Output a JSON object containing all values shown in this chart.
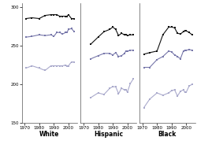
{
  "years_white": [
    1971,
    1975,
    1980,
    1984,
    1988,
    1990,
    1992,
    1994,
    1996,
    1998,
    1999,
    2000,
    2002,
    2004
  ],
  "white_grade12": [
    285,
    286,
    285,
    289,
    290,
    290,
    290,
    288,
    288,
    288,
    288,
    290,
    285,
    285
  ],
  "white_grade8": [
    261,
    262,
    264,
    263,
    264,
    262,
    267,
    267,
    265,
    267,
    267,
    271,
    272,
    268
  ],
  "white_grade4": [
    221,
    224,
    221,
    218,
    224,
    224,
    224,
    224,
    224,
    225,
    224,
    224,
    229,
    229
  ],
  "years_hispanic": [
    1975,
    1980,
    1984,
    1988,
    1990,
    1992,
    1994,
    1996,
    1998,
    1999,
    2000,
    2002,
    2004
  ],
  "hisp_grade12": [
    252,
    261,
    268,
    271,
    274,
    271,
    263,
    266,
    264,
    264,
    263,
    264,
    264
  ],
  "hisp_grade8": [
    233,
    237,
    240,
    240,
    238,
    241,
    236,
    237,
    240,
    243,
    243,
    244,
    244
  ],
  "hisp_grade4": [
    183,
    189,
    187,
    195,
    197,
    197,
    188,
    195,
    193,
    193,
    190,
    201,
    207
  ],
  "years_black": [
    1971,
    1975,
    1980,
    1984,
    1988,
    1990,
    1992,
    1994,
    1996,
    1998,
    1999,
    2000,
    2002,
    2004
  ],
  "black_grade12": [
    239,
    241,
    243,
    264,
    274,
    274,
    273,
    266,
    265,
    268,
    269,
    269,
    267,
    264
  ],
  "black_grade8": [
    222,
    222,
    232,
    236,
    243,
    242,
    238,
    236,
    233,
    243,
    244,
    244,
    245,
    244
  ],
  "black_grade4": [
    170,
    181,
    189,
    186,
    189,
    192,
    193,
    185,
    191,
    193,
    190,
    190,
    198,
    200
  ],
  "color_dark": "#111111",
  "color_mid": "#7777aa",
  "color_light": "#aaaacc",
  "ylim": [
    150,
    305
  ],
  "yticks": [
    150,
    200,
    250,
    300
  ],
  "xticks": [
    1970,
    1980,
    1990,
    2000
  ],
  "xticklabels": [
    "1970",
    "1980",
    "1990",
    "2000"
  ],
  "labels": [
    "White",
    "Hispanic",
    "Black"
  ],
  "background": "#ffffff"
}
